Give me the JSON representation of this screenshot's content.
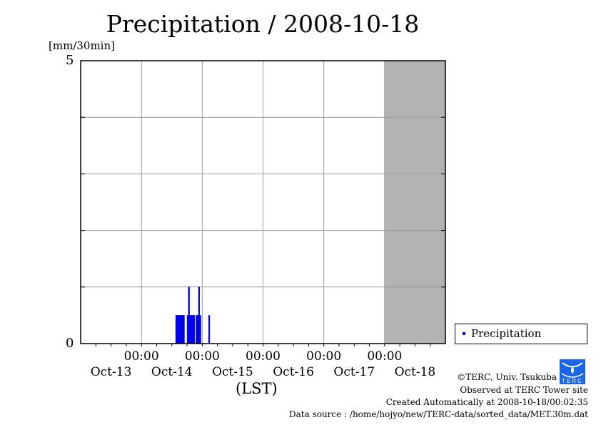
{
  "title": "Precipitation / 2008-10-18",
  "y_unit": "[mm/30min]",
  "x_label": "(LST)",
  "footer": {
    "copyright": "©TERC, Univ. Tsukuba",
    "observed": "Observed at TERC Tower site",
    "created": "Created Automatically at 2008-10-18/00:02:35",
    "source": "Data source : /home/hojyo/new/TERC-data/sorted_data/MET.30m.dat",
    "logo_text": "TERC"
  },
  "chart_data": {
    "type": "bar",
    "title": "Precipitation / 2008-10-18",
    "xlabel": "(LST)",
    "ylabel": "[mm/30min]",
    "x_unit": "hours since 2008-10-13 00:00",
    "xlim": [
      0,
      144
    ],
    "ylim": [
      0,
      5
    ],
    "y_ticks": [
      "0",
      "5"
    ],
    "x_ticks": [
      {
        "time": "00:00",
        "day": "Oct-13",
        "hour": 24
      },
      {
        "time": "00:00",
        "day": "Oct-14",
        "hour": 48
      },
      {
        "time": "00:00",
        "day": "Oct-15",
        "hour": 72
      },
      {
        "time": "00:00",
        "day": "Oct-16",
        "hour": 96
      },
      {
        "time": "00:00",
        "day": "Oct-17",
        "hour": 120
      },
      {
        "time": "",
        "day": "Oct-18",
        "hour": 144
      }
    ],
    "day_labels": [
      "Oct-13",
      "Oct-14",
      "Oct-15",
      "Oct-16",
      "Oct-17",
      "Oct-18"
    ],
    "shaded_range": [
      120,
      144
    ],
    "grid": true,
    "legend": {
      "placement": "right",
      "entries": [
        "Precipitation"
      ]
    },
    "series": [
      {
        "name": "Precipitation",
        "color": "#0000ff",
        "points": [
          [
            37.5,
            0.5
          ],
          [
            38,
            0.5
          ],
          [
            38.5,
            0.5
          ],
          [
            39,
            0.5
          ],
          [
            39.5,
            0.5
          ],
          [
            40,
            0.5
          ],
          [
            40.5,
            0.5
          ],
          [
            42,
            0.5
          ],
          [
            42.5,
            1.0
          ],
          [
            43,
            0.5
          ],
          [
            43.5,
            0.5
          ],
          [
            44,
            0.5
          ],
          [
            44.5,
            0.5
          ],
          [
            45.5,
            0.5
          ],
          [
            46,
            0.5
          ],
          [
            46.5,
            1.0
          ],
          [
            47,
            0.5
          ],
          [
            50.5,
            0.5
          ]
        ]
      }
    ]
  }
}
